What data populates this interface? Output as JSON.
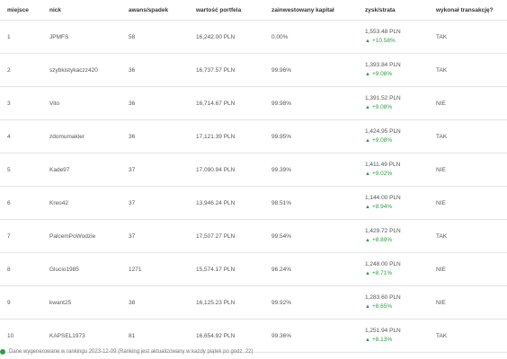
{
  "headers": {
    "rank": "miejsce",
    "nick": "nick",
    "change": "awans/spadek",
    "value": "wartość portfela",
    "invested": "zainwestowany kapitał",
    "profit": "zysk/strata",
    "transaction": "wykonał transakcję?"
  },
  "colors": {
    "gain": "#2e9e44",
    "border": "#e4e4e4"
  },
  "rows": [
    {
      "rank": "1",
      "nick": "JPMFS",
      "change": "58",
      "value": "16,242.00 PLN",
      "invested": "0.00%",
      "profit": "1,553.48 PLN",
      "pct": "+10.58%",
      "tx": "TAK"
    },
    {
      "rank": "2",
      "nick": "szybkistykaczz420",
      "change": "36",
      "value": "16,737.57 PLN",
      "invested": "99.96%",
      "profit": "1,393.84 PLN",
      "pct": "+9.08%",
      "tx": "TAK"
    },
    {
      "rank": "3",
      "nick": "Vito",
      "change": "36",
      "value": "16,714.67 PLN",
      "invested": "99.98%",
      "profit": "1,391.52 PLN",
      "pct": "+9.08%",
      "tx": "NIE"
    },
    {
      "rank": "4",
      "nick": "zdomumakler",
      "change": "36",
      "value": "17,121.39 PLN",
      "invested": "99.95%",
      "profit": "1,424.95 PLN",
      "pct": "+9.08%",
      "tx": "TAK"
    },
    {
      "rank": "5",
      "nick": "Kade97",
      "change": "37",
      "value": "17,090.94 PLN",
      "invested": "99.39%",
      "profit": "1,411.49 PLN",
      "pct": "+9.02%",
      "tx": "NIE"
    },
    {
      "rank": "6",
      "nick": "Kreo42",
      "change": "37",
      "value": "13,946.24 PLN",
      "invested": "98.51%",
      "profit": "1,144.00 PLN",
      "pct": "+8.94%",
      "tx": "NIE"
    },
    {
      "rank": "7",
      "nick": "PalcemPoWodzie",
      "change": "37",
      "value": "17,507.27 PLN",
      "invested": "99.54%",
      "profit": "1,429.72 PLN",
      "pct": "+8.89%",
      "tx": "TAK"
    },
    {
      "rank": "8",
      "nick": "Glucio1985",
      "change": "1271",
      "value": "15,574.17 PLN",
      "invested": "96.24%",
      "profit": "1,248.00 PLN",
      "pct": "+8.71%",
      "tx": "NIE"
    },
    {
      "rank": "9",
      "nick": "kwant25",
      "change": "38",
      "value": "16,125.23 PLN",
      "invested": "99.92%",
      "profit": "1,283.60 PLN",
      "pct": "+8.65%",
      "tx": "NIE"
    },
    {
      "rank": "10",
      "nick": "KAPSEL1973",
      "change": "81",
      "value": "16,654.92 PLN",
      "invested": "99.36%",
      "profit": "1,251.94 PLN",
      "pct": "+8.13%",
      "tx": "TAK"
    }
  ],
  "footer": {
    "note": "Dane wygenerowane w rankingu 2023-12-09 (Ranking jest aktualizowany w każdy piątek po godz. 22)"
  }
}
